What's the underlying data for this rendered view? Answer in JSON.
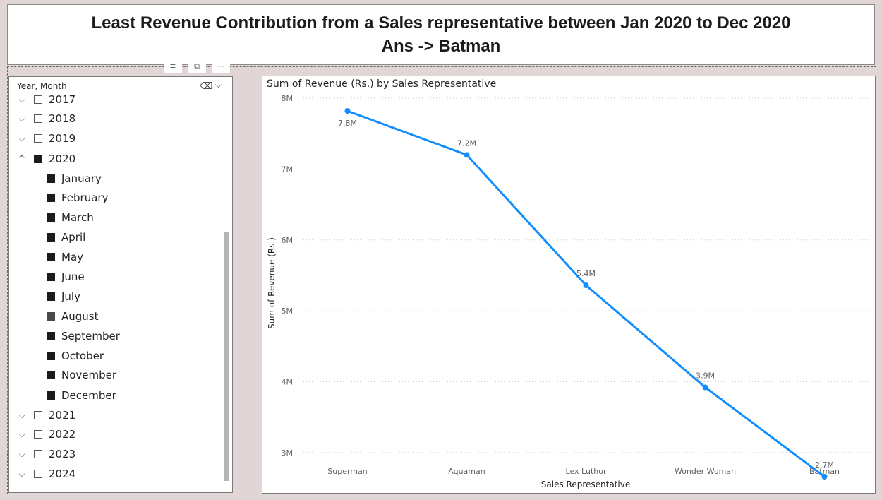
{
  "header": {
    "line1": "Least Revenue Contribution from a Sales representative between Jan 2020 to Dec 2020",
    "line2": "Ans -> Batman"
  },
  "slicer": {
    "title": "Year, Month",
    "rows": [
      {
        "label": "2017",
        "level": 0,
        "state": "empty",
        "expand": "collapsed"
      },
      {
        "label": "2018",
        "level": 0,
        "state": "empty",
        "expand": "collapsed"
      },
      {
        "label": "2019",
        "level": 0,
        "state": "empty",
        "expand": "collapsed"
      },
      {
        "label": "2020",
        "level": 0,
        "state": "checked",
        "expand": "expanded"
      },
      {
        "label": "January",
        "level": 1,
        "state": "checked"
      },
      {
        "label": "February",
        "level": 1,
        "state": "checked"
      },
      {
        "label": "March",
        "level": 1,
        "state": "checked"
      },
      {
        "label": "April",
        "level": 1,
        "state": "checked"
      },
      {
        "label": "May",
        "level": 1,
        "state": "checked"
      },
      {
        "label": "June",
        "level": 1,
        "state": "checked"
      },
      {
        "label": "July",
        "level": 1,
        "state": "checked"
      },
      {
        "label": "August",
        "level": 1,
        "state": "hover"
      },
      {
        "label": "September",
        "level": 1,
        "state": "checked"
      },
      {
        "label": "October",
        "level": 1,
        "state": "checked"
      },
      {
        "label": "November",
        "level": 1,
        "state": "checked"
      },
      {
        "label": "December",
        "level": 1,
        "state": "checked"
      },
      {
        "label": "2021",
        "level": 0,
        "state": "empty",
        "expand": "collapsed"
      },
      {
        "label": "2022",
        "level": 0,
        "state": "empty",
        "expand": "collapsed"
      },
      {
        "label": "2023",
        "level": 0,
        "state": "empty",
        "expand": "collapsed"
      },
      {
        "label": "2024",
        "level": 0,
        "state": "empty",
        "expand": "collapsed"
      }
    ]
  },
  "chart_data": {
    "type": "line",
    "title": "Sum of Revenue (Rs.) by Sales Representative",
    "xlabel": "Sales Representative",
    "ylabel": "Sum of Revenue (Rs.)",
    "categories": [
      "Superman",
      "Aquaman",
      "Lex Luthor",
      "Wonder Woman",
      "Batman"
    ],
    "series": [
      {
        "values": [
          7.82,
          7.2,
          5.36,
          3.92,
          2.66
        ],
        "color": "#118dff"
      }
    ],
    "data_labels": [
      "7.8M",
      "7.2M",
      "5.4M",
      "3.9M",
      "2.7M"
    ],
    "yticks": [
      3,
      4,
      5,
      6,
      7,
      8
    ],
    "ytick_labels": [
      "3M",
      "4M",
      "5M",
      "6M",
      "7M",
      "8M"
    ],
    "ylim": [
      2.5,
      8.15
    ],
    "grid": true
  }
}
